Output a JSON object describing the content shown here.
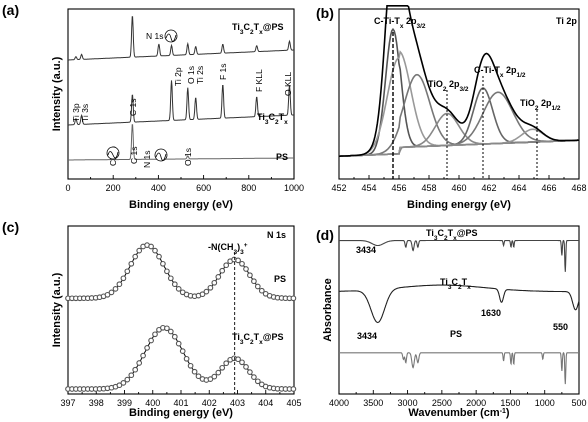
{
  "chart_data": [
    {
      "id": "a",
      "type": "line",
      "panel_label": "(a)",
      "xlabel": "Binding energy (eV)",
      "ylabel": "Intensity (a.u.)",
      "xlim": [
        0,
        1000
      ],
      "x_ticks": [
        "0",
        "200",
        "400",
        "600",
        "800",
        "1000"
      ],
      "series": [
        {
          "name": "Ti3C2Tx@PS",
          "label_main": "Ti",
          "label_parts": [
            "3",
            "C",
            "2",
            "T",
            "x",
            "@PS"
          ],
          "color": "#333333",
          "peaks": [
            [
              35,
              3
            ],
            [
              60,
              5
            ],
            [
              285,
              42
            ],
            [
              402,
              12
            ],
            [
              458,
              10
            ],
            [
              530,
              11
            ],
            [
              565,
              8
            ],
            [
              685,
              9
            ],
            [
              835,
              6
            ],
            [
              980,
              9
            ]
          ]
        },
        {
          "name": "Ti3C2Tx",
          "color": "#333333",
          "peaks": [
            [
              35,
              6
            ],
            [
              60,
              9
            ],
            [
              285,
              28
            ],
            [
              458,
              40
            ],
            [
              530,
              32
            ],
            [
              565,
              22
            ],
            [
              685,
              34
            ],
            [
              835,
              20
            ],
            [
              980,
              30
            ]
          ]
        },
        {
          "name": "PS",
          "color": "#666666",
          "peaks": [
            [
              285,
              36
            ],
            [
              402,
              3
            ],
            [
              530,
              3
            ]
          ]
        }
      ],
      "annotations": [
        "N 1s",
        "Ti 2p",
        "O 1s",
        "Ti 2s",
        "F 1s",
        "F KLL",
        "O KLL",
        "Ti 3p",
        "Ti 3s",
        "C 1s",
        "C 1s",
        "Cl 2p",
        "N 1s",
        "O 1s"
      ],
      "legend_labels": {
        "top": "Ti3C2Tx@PS",
        "mid": "Ti3C2Tx",
        "bot": "PS"
      }
    },
    {
      "id": "b",
      "type": "line",
      "panel_label": "(b)",
      "title": "Ti 2p",
      "xlabel": "Binding energy (eV)",
      "xlim": [
        452,
        468
      ],
      "x_ticks": [
        "452",
        "454",
        "456",
        "458",
        "460",
        "462",
        "464",
        "466",
        "468"
      ],
      "components": [
        {
          "center": 455.6,
          "height": 0.78,
          "width": 0.7
        },
        {
          "center": 456.0,
          "height": 0.6,
          "width": 1.1
        },
        {
          "center": 457.2,
          "height": 0.45,
          "width": 1.2
        },
        {
          "center": 459.2,
          "height": 0.2,
          "width": 1.1
        },
        {
          "center": 461.6,
          "height": 0.35,
          "width": 0.9
        },
        {
          "center": 462.6,
          "height": 0.32,
          "width": 1.4
        },
        {
          "center": 464.9,
          "height": 0.08,
          "width": 1.0
        }
      ],
      "marker_lines": [
        455.6,
        459.2,
        461.6,
        465.2
      ],
      "annotations": {
        "peak1": "C-Ti-T",
        "peak1_sub": "x",
        "peak1_tail": " 2p",
        "peak1_sub2": "3/2",
        "peak2": "TiO",
        "peak2_sub": "2",
        "peak2_tail": " 2p",
        "peak2_sub2": "3/2",
        "peak3": "C-Ti-T",
        "peak3_sub": "x",
        "peak3_tail": " 2p",
        "peak3_sub2": "1/2",
        "peak4": "TiO",
        "peak4_sub": "2",
        "peak4_tail": " 2p",
        "peak4_sub2": "1/2"
      }
    },
    {
      "id": "c",
      "type": "scatter",
      "panel_label": "(c)",
      "title": "N 1s",
      "xlabel": "Binding energy (eV)",
      "ylabel": "Intensity (a.u.)",
      "xlim": [
        397,
        405
      ],
      "x_ticks": [
        "397",
        "398",
        "399",
        "400",
        "401",
        "402",
        "403",
        "404",
        "405"
      ],
      "series": [
        {
          "name": "PS",
          "peaks": [
            [
              399.8,
              0.52,
              0.85
            ],
            [
              402.9,
              0.38,
              0.75
            ]
          ],
          "offset": 0.58
        },
        {
          "name": "Ti3C2Tx@PS",
          "label_parts": [
            "Ti",
            "3",
            "C",
            "2",
            "T",
            "x",
            "@PS"
          ],
          "peaks": [
            [
              400.4,
              0.6,
              0.95
            ],
            [
              402.9,
              0.3,
              0.7
            ]
          ],
          "offset": 0.03
        }
      ],
      "marker_line": 402.9,
      "annotation": "-N(CH",
      "annotation_sub": "3",
      "annotation_tail": ")",
      "annotation_sub2": "3",
      "annotation_sup": "+"
    },
    {
      "id": "d",
      "type": "line",
      "panel_label": "(d)",
      "xlabel": "Wavenumber (cm",
      "xlabel_sup": "-1",
      "xlabel_tail": ")",
      "ylabel": "Absorbance",
      "xlim": [
        4000,
        500
      ],
      "x_ticks": [
        "4000",
        "3500",
        "3000",
        "2500",
        "2000",
        "1500",
        "1000",
        "500"
      ],
      "series": [
        {
          "name": "Ti3C2Tx@PS",
          "offset": 0.93,
          "dips": [
            [
              3434,
              0.03,
              120
            ],
            [
              3026,
              0.04,
              15
            ],
            [
              2920,
              0.06,
              20
            ],
            [
              2850,
              0.04,
              15
            ],
            [
              1600,
              0.03,
              10
            ],
            [
              1492,
              0.04,
              10
            ],
            [
              1452,
              0.04,
              10
            ],
            [
              750,
              0.09,
              10
            ],
            [
              700,
              0.19,
              10
            ]
          ]
        },
        {
          "name": "Ti3C2Tx",
          "offset": 0.62,
          "dips": [
            [
              3434,
              0.2,
              140
            ],
            [
              1630,
              0.08,
              40
            ],
            [
              550,
              0.11,
              60
            ]
          ]
        },
        {
          "name": "PS",
          "offset": 0.25,
          "dips": [
            [
              3060,
              0.04,
              15
            ],
            [
              3026,
              0.06,
              15
            ],
            [
              2920,
              0.09,
              25
            ],
            [
              2850,
              0.06,
              20
            ],
            [
              1600,
              0.05,
              10
            ],
            [
              1492,
              0.07,
              10
            ],
            [
              1452,
              0.07,
              10
            ],
            [
              1028,
              0.04,
              10
            ],
            [
              750,
              0.11,
              10
            ],
            [
              700,
              0.19,
              10
            ]
          ]
        }
      ],
      "annotations": [
        "3434",
        "3434",
        "1630",
        "550"
      ],
      "labels": {
        "top_main": "Ti",
        "top_parts": [
          "3",
          "C",
          "2",
          "T",
          "x",
          "@PS"
        ],
        "mid_parts": [
          "Ti",
          "3",
          "C",
          "2",
          "T",
          "x"
        ],
        "bot": "PS"
      }
    }
  ]
}
